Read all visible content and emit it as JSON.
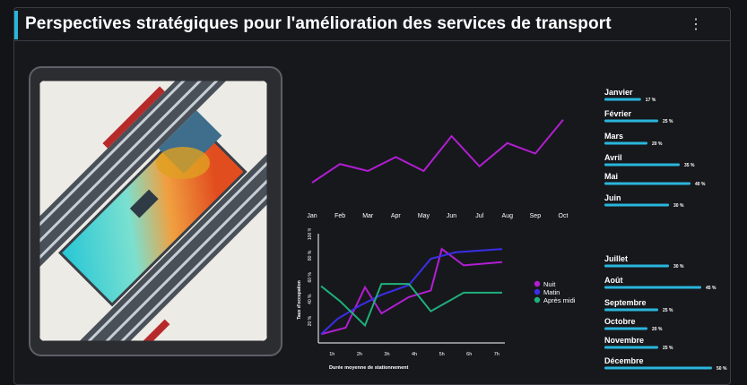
{
  "header": {
    "title": "Perspectives stratégiques pour l'amélioration des services de transport",
    "menu_icon": "kebab-menu-icon"
  },
  "image": {
    "icon": "aerial-station-illustration"
  },
  "colors": {
    "accent": "#29b6dc",
    "magenta": "#b21ed3",
    "blue": "#3a2ee8",
    "green": "#1fb07a",
    "bar": "#29b6dc"
  },
  "chart_data": [
    {
      "type": "line",
      "categories": [
        "Jan",
        "Feb",
        "Mar",
        "Apr",
        "May",
        "Jun",
        "Jul",
        "Aug",
        "Sep",
        "Oct"
      ],
      "series": [
        {
          "values": [
            20,
            36,
            30,
            42,
            30,
            60,
            34,
            54,
            45,
            74
          ]
        }
      ],
      "ylim": [
        0,
        100
      ]
    },
    {
      "type": "line",
      "categories": [
        "1h",
        "2h",
        "3h",
        "4h",
        "5h",
        "6h",
        "7h"
      ],
      "xlabel": "Durée moyenne de stationnement",
      "ylabel": "Taux d'occupation",
      "yticks": [
        "20 %",
        "40 %",
        "60 %",
        "80 %",
        "100 %"
      ],
      "ylim": [
        0,
        100
      ],
      "x_points": [
        0.6,
        1.2,
        2.2,
        2.5,
        3.0,
        4.1,
        4.6,
        5.3,
        6.0,
        7.2
      ],
      "series": [
        {
          "name": "Nuit",
          "points": [
            [
              0.6,
              8
            ],
            [
              1.5,
              14
            ],
            [
              2.2,
              51
            ],
            [
              2.8,
              27
            ],
            [
              3.8,
              42
            ],
            [
              4.6,
              48
            ],
            [
              5.0,
              86
            ],
            [
              5.8,
              71
            ],
            [
              7.2,
              74
            ]
          ]
        },
        {
          "name": "Matin",
          "points": [
            [
              0.6,
              8
            ],
            [
              1.2,
              22
            ],
            [
              2.0,
              34
            ],
            [
              2.8,
              44
            ],
            [
              3.8,
              53
            ],
            [
              4.6,
              77
            ],
            [
              5.5,
              83
            ],
            [
              7.2,
              86
            ]
          ]
        },
        {
          "name": "Après midi",
          "points": [
            [
              0.6,
              52
            ],
            [
              1.3,
              38
            ],
            [
              2.2,
              16
            ],
            [
              2.8,
              54
            ],
            [
              3.8,
              54
            ],
            [
              4.6,
              29
            ],
            [
              5.8,
              46
            ],
            [
              7.2,
              46
            ]
          ]
        }
      ],
      "legend": "right"
    },
    {
      "type": "bar",
      "orientation": "horizontal",
      "categories": [
        "Janvier",
        "Février",
        "Mars",
        "Avril",
        "Mai",
        "Juin",
        "Juillet",
        "Août",
        "Septembre",
        "Octobre",
        "Novembre",
        "Décembre"
      ],
      "values": [
        17,
        25,
        20,
        35,
        40,
        30,
        30,
        45,
        25,
        20,
        25,
        50
      ],
      "labels": [
        "17 %",
        "25 %",
        "20 %",
        "35 %",
        "40 %",
        "30 %",
        "30 %",
        "45 %",
        "25 %",
        "20 %",
        "25 %",
        "50 %"
      ],
      "xlim": [
        0,
        50
      ]
    }
  ]
}
